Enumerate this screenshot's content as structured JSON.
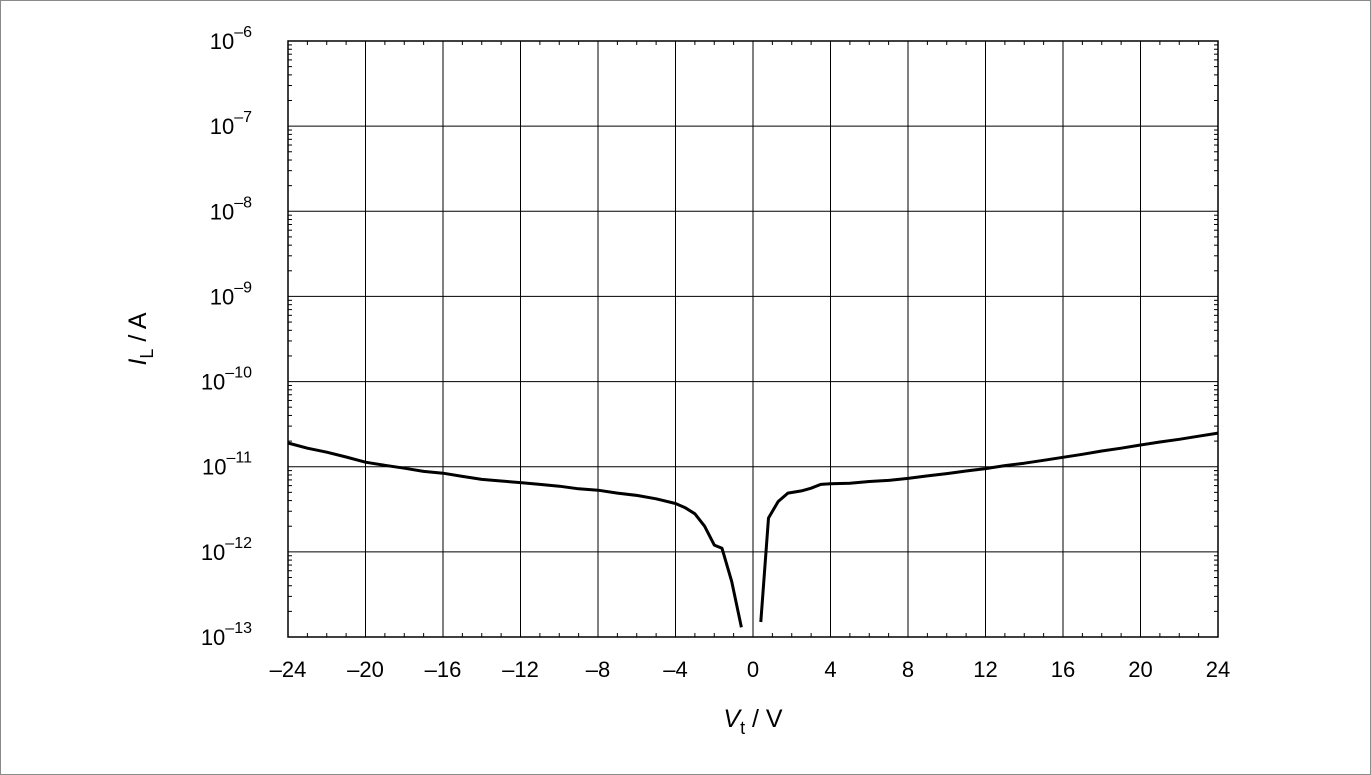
{
  "chart_data": {
    "type": "line",
    "title": "",
    "xlabel": {
      "main": "V",
      "sub": "t",
      "unit": " / V"
    },
    "ylabel": {
      "main": "I",
      "sub": "L",
      "unit": " / A"
    },
    "x_scale": "linear",
    "y_scale": "log",
    "xlim": [
      -24,
      24
    ],
    "ylim": [
      1e-13,
      1e-06
    ],
    "grid": true,
    "legend": "none",
    "x_ticks": [
      -24,
      -20,
      -16,
      -12,
      -8,
      -4,
      0,
      4,
      8,
      12,
      16,
      20,
      24
    ],
    "x_tick_labels": [
      "–24",
      "–20",
      "–16",
      "–12",
      "–8",
      "–4",
      "0",
      "4",
      "8",
      "12",
      "16",
      "20",
      "24"
    ],
    "y_ticks": [
      1e-13,
      1e-12,
      1e-11,
      1e-10,
      1e-09,
      1e-08,
      1e-07,
      1e-06
    ],
    "y_tick_labels": [
      {
        "base": "10",
        "exp": "–13"
      },
      {
        "base": "10",
        "exp": "–12"
      },
      {
        "base": "10",
        "exp": "–11"
      },
      {
        "base": "10",
        "exp": "–10"
      },
      {
        "base": "10",
        "exp": "–9"
      },
      {
        "base": "10",
        "exp": "–8"
      },
      {
        "base": "10",
        "exp": "–7"
      },
      {
        "base": "10",
        "exp": "–6"
      }
    ],
    "line_color": "#000000",
    "series": [
      {
        "segments": [
          [
            [
              -24,
              1.9e-11
            ],
            [
              -23,
              1.65e-11
            ],
            [
              -22,
              1.48e-11
            ],
            [
              -21,
              1.3e-11
            ],
            [
              -20,
              1.13e-11
            ],
            [
              -19,
              1.04e-11
            ],
            [
              -18,
              9.6e-12
            ],
            [
              -17,
              8.8e-12
            ],
            [
              -16,
              8.4e-12
            ],
            [
              -15,
              7.7e-12
            ],
            [
              -14,
              7.1e-12
            ],
            [
              -13,
              6.8e-12
            ],
            [
              -12,
              6.5e-12
            ],
            [
              -11,
              6.2e-12
            ],
            [
              -10,
              5.9e-12
            ],
            [
              -9,
              5.5e-12
            ],
            [
              -8,
              5.3e-12
            ],
            [
              -7,
              4.9e-12
            ],
            [
              -6,
              4.6e-12
            ],
            [
              -5,
              4.2e-12
            ],
            [
              -4,
              3.7e-12
            ],
            [
              -3.5,
              3.3e-12
            ],
            [
              -3,
              2.8e-12
            ],
            [
              -2.5,
              2e-12
            ],
            [
              -2,
              1.2e-12
            ],
            [
              -1.6,
              1.1e-12
            ],
            [
              -1.1,
              4.5e-13
            ],
            [
              -0.6,
              1.3e-13
            ]
          ],
          [
            [
              0.4,
              1.5e-13
            ],
            [
              0.8,
              2.5e-12
            ],
            [
              1.3,
              3.9e-12
            ],
            [
              1.8,
              4.9e-12
            ],
            [
              2.5,
              5.2e-12
            ],
            [
              3,
              5.6e-12
            ],
            [
              3.5,
              6.2e-12
            ],
            [
              4,
              6.3e-12
            ],
            [
              5,
              6.4e-12
            ],
            [
              6,
              6.7e-12
            ],
            [
              7,
              6.9e-12
            ],
            [
              8,
              7.3e-12
            ],
            [
              9,
              7.8e-12
            ],
            [
              10,
              8.3e-12
            ],
            [
              11,
              8.9e-12
            ],
            [
              12,
              9.5e-12
            ],
            [
              13,
              1.03e-11
            ],
            [
              14,
              1.1e-11
            ],
            [
              15,
              1.19e-11
            ],
            [
              16,
              1.29e-11
            ],
            [
              17,
              1.4e-11
            ],
            [
              18,
              1.53e-11
            ],
            [
              19,
              1.65e-11
            ],
            [
              20,
              1.8e-11
            ],
            [
              21,
              1.95e-11
            ],
            [
              22,
              2.1e-11
            ],
            [
              23,
              2.28e-11
            ],
            [
              24,
              2.48e-11
            ]
          ]
        ]
      }
    ]
  }
}
